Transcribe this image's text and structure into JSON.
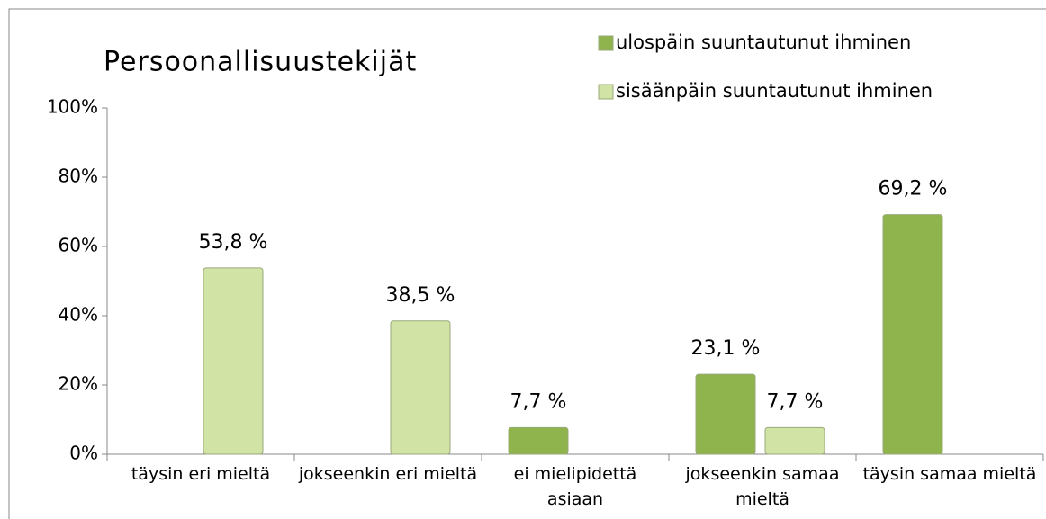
{
  "chart_data": {
    "type": "bar",
    "title": "Persoonallisuustekijät",
    "categories": [
      "täysin eri mieltä",
      "jokseenkin eri mieltä",
      "ei mielipidettä asiaan",
      "jokseenkin samaa mieltä",
      "täysin samaa mieltä"
    ],
    "series": [
      {
        "name": "ulospäin suuntautunut ihminen",
        "color": "#8fb34d",
        "values": [
          null,
          null,
          7.7,
          23.1,
          69.2
        ],
        "value_labels": [
          null,
          null,
          "7,7 %",
          "23,1 %",
          "69,2 %"
        ]
      },
      {
        "name": "sisäänpäin suuntautunut ihminen",
        "color": "#d2e3a6",
        "values": [
          53.8,
          38.5,
          null,
          7.7,
          null
        ],
        "value_labels": [
          "53,8 %",
          "38,5 %",
          null,
          "7,7 %",
          null
        ]
      }
    ],
    "ylim": [
      0,
      100
    ],
    "yticks": [
      {
        "value": 0,
        "label": "0%"
      },
      {
        "value": 20,
        "label": "20%"
      },
      {
        "value": 40,
        "label": "40%"
      },
      {
        "value": 60,
        "label": "60%"
      },
      {
        "value": 80,
        "label": "80%"
      },
      {
        "value": 100,
        "label": "100%"
      }
    ],
    "legend": "top-right"
  }
}
